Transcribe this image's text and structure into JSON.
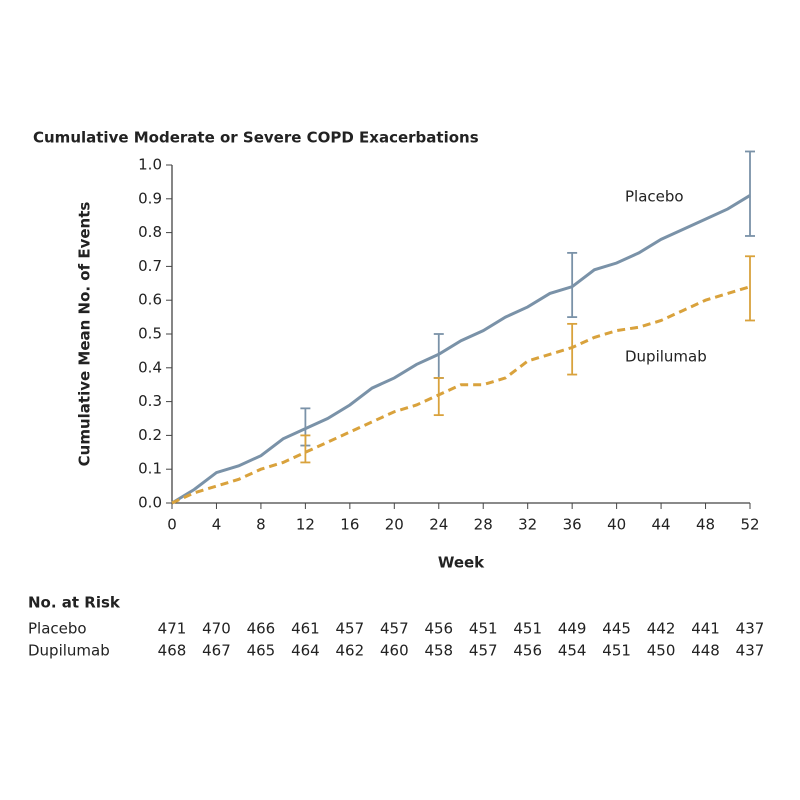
{
  "chart_data": {
    "type": "line",
    "title": "Cumulative Moderate or Severe COPD Exacerbations",
    "x_label": "Week",
    "y_label": "Cumulative Mean No. of Events",
    "x": [
      0,
      2,
      4,
      6,
      8,
      10,
      12,
      14,
      16,
      18,
      20,
      22,
      24,
      26,
      28,
      30,
      32,
      34,
      36,
      38,
      40,
      42,
      44,
      46,
      48,
      50,
      52
    ],
    "series": [
      {
        "name": "Placebo",
        "color": "#7a92a8",
        "line_style": "solid",
        "values": [
          0,
          0.04,
          0.09,
          0.11,
          0.14,
          0.19,
          0.22,
          0.25,
          0.29,
          0.34,
          0.37,
          0.41,
          0.44,
          0.48,
          0.51,
          0.55,
          0.58,
          0.62,
          0.64,
          0.69,
          0.71,
          0.74,
          0.78,
          0.81,
          0.84,
          0.87,
          0.91
        ],
        "error_bars": [
          {
            "x": 12,
            "lower": 0.17,
            "upper": 0.28
          },
          {
            "x": 24,
            "lower": 0.37,
            "upper": 0.5
          },
          {
            "x": 36,
            "lower": 0.55,
            "upper": 0.74
          },
          {
            "x": 52,
            "lower": 0.79,
            "upper": 1.04
          }
        ]
      },
      {
        "name": "Dupilumab",
        "color": "#d9a23c",
        "line_style": "dashed",
        "values": [
          0,
          0.03,
          0.05,
          0.07,
          0.1,
          0.12,
          0.15,
          0.18,
          0.21,
          0.24,
          0.27,
          0.29,
          0.32,
          0.35,
          0.35,
          0.37,
          0.42,
          0.44,
          0.46,
          0.49,
          0.51,
          0.52,
          0.54,
          0.57,
          0.6,
          0.62,
          0.64
        ],
        "error_bars": [
          {
            "x": 12,
            "lower": 0.12,
            "upper": 0.2
          },
          {
            "x": 24,
            "lower": 0.26,
            "upper": 0.37
          },
          {
            "x": 36,
            "lower": 0.38,
            "upper": 0.53
          },
          {
            "x": 52,
            "lower": 0.54,
            "upper": 0.73
          }
        ]
      }
    ],
    "xlim": [
      0,
      52
    ],
    "xticks": [
      0,
      4,
      8,
      12,
      16,
      20,
      24,
      28,
      32,
      36,
      40,
      44,
      48,
      52
    ],
    "ylim": [
      0,
      1
    ],
    "yticks": [
      {
        "value": 0,
        "label": "0.0"
      },
      0.1,
      0.2,
      0.3,
      0.4,
      0.5,
      0.6,
      0.7,
      0.8,
      0.9,
      {
        "value": 1,
        "label": "1.0"
      }
    ],
    "grid": false,
    "risk_table": {
      "title": "No. at Risk",
      "rows": [
        {
          "name": "Placebo",
          "values": [
            471,
            470,
            466,
            461,
            457,
            457,
            456,
            451,
            451,
            449,
            445,
            442,
            441,
            437
          ]
        },
        {
          "name": "Dupilumab",
          "values": [
            468,
            467,
            465,
            464,
            462,
            460,
            458,
            457,
            456,
            454,
            451,
            450,
            448,
            437
          ]
        }
      ]
    }
  }
}
